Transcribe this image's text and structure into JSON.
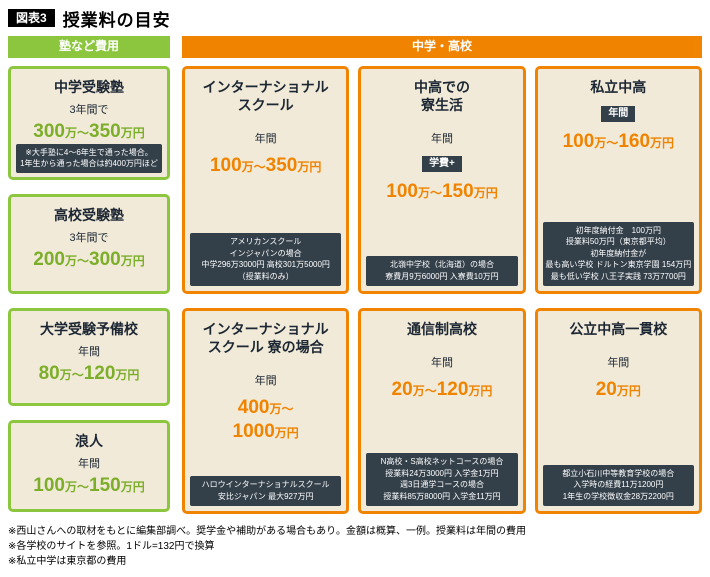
{
  "figure": {
    "tag": "図表3",
    "title": "授業料の目安"
  },
  "headers": {
    "left": "塾など費用",
    "right": "中学・高校"
  },
  "colors": {
    "green": "#8cc63f",
    "orange": "#f08300",
    "dark": "#333f49",
    "cream": "#f1ead8"
  },
  "left_boxes": [
    {
      "title": "中学受験塾",
      "period": "3年間で",
      "amount": "300万〜350万円",
      "note": "※大手塾に4〜6年生で通った場合。\n1年生から通った場合は約400万円ほど"
    },
    {
      "title": "高校受験塾",
      "period": "3年間で",
      "amount": "200万〜300万円"
    },
    {
      "title": "大学受験予備校",
      "period": "年間",
      "amount": "80万〜120万円"
    },
    {
      "title": "浪人",
      "period": "年間",
      "amount": "100万〜150万円"
    }
  ],
  "right_boxes": [
    {
      "title": "インターナショナル\nスクール",
      "period": "年間",
      "amount": "100万〜350万円",
      "note": "アメリカンスクール\nインジャパンの場合\n中学296万3000円 高校301万5000円\n（授業料のみ）"
    },
    {
      "title": "中高での\n寮生活",
      "period": "年間",
      "badge": "学費+",
      "amount": "100万〜150万円",
      "note": "北嶺中学校（北海道）の場合\n寮費月9万6000円 入寮費10万円"
    },
    {
      "title": "私立中高",
      "badge": "年間",
      "amount": "100万〜160万円",
      "note": "初年度納付金　100万円\n授業料50万円（東京都平均）\n初年度納付金が\n最も高い学校 ドルトン東京学園 154万円\n最も低い学校 八王子実践 73万7700円"
    },
    {
      "title": "インターナショナル\nスクール 寮の場合",
      "period": "年間",
      "amount": "400万〜\n1000万円",
      "note": "ハロウインターナショナルスクール\n安比ジャパン 最大927万円"
    },
    {
      "title": "通信制高校",
      "period": "年間",
      "amount": "20万〜120万円",
      "note": "N高校・S高校ネットコースの場合\n授業料24万3000円 入学金1万円\n週3日通学コースの場合\n授業料85万8000円 入学金11万円"
    },
    {
      "title": "公立中高一貫校",
      "period": "年間",
      "amount": "20万円",
      "note": "都立小石川中等教育学校の場合\n入学時の経費11万1200円\n1年生の学校徴収金28万2200円"
    }
  ],
  "footnotes": [
    "※西山さんへの取材をもとに編集部調べ。奨学金や補助がある場合もあり。金額は概算、一例。授業料は年間の費用",
    "※各学校のサイトを参照。1ドル=132円で換算",
    "※私立中学は東京都の費用"
  ]
}
